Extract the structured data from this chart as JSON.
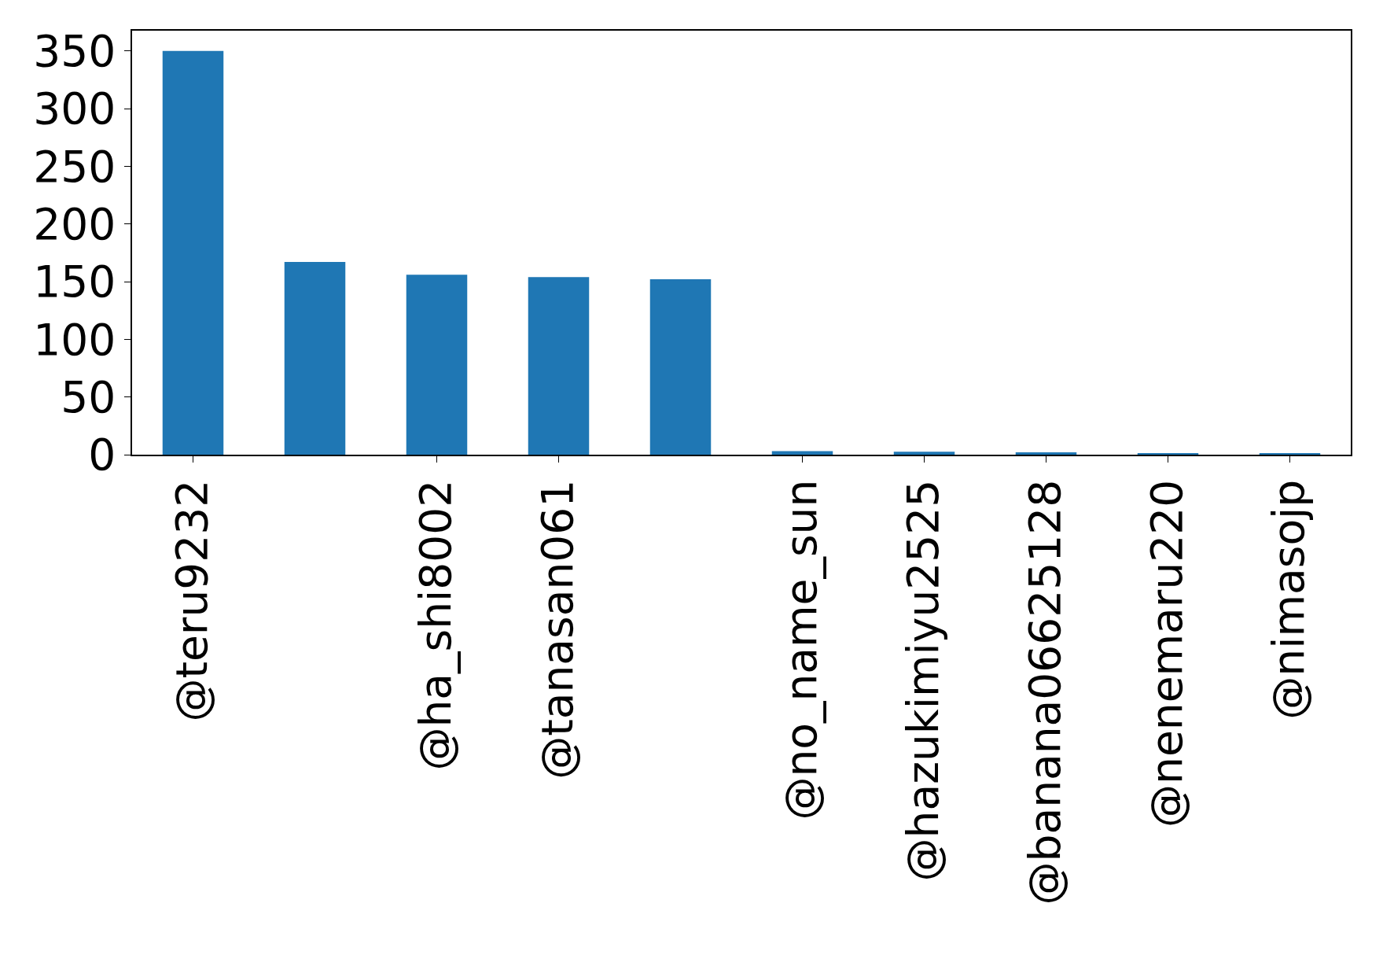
{
  "chart_data": {
    "type": "bar",
    "categories": [
      "@teru9232",
      null,
      "@ha_shi8002",
      "@tanasan061",
      null,
      "@no_name_sun",
      "@hazukimiyu2525",
      "@banana06625128",
      "@nenemaru220",
      "@nimasojp"
    ],
    "values": [
      350,
      167,
      156,
      154,
      152,
      3,
      2.5,
      2,
      1,
      1
    ],
    "color": "#1f77b4",
    "ylim": [
      0,
      367.5
    ],
    "yticks": [
      0,
      50,
      100,
      150,
      200,
      250,
      300,
      350
    ],
    "grid": false
  }
}
